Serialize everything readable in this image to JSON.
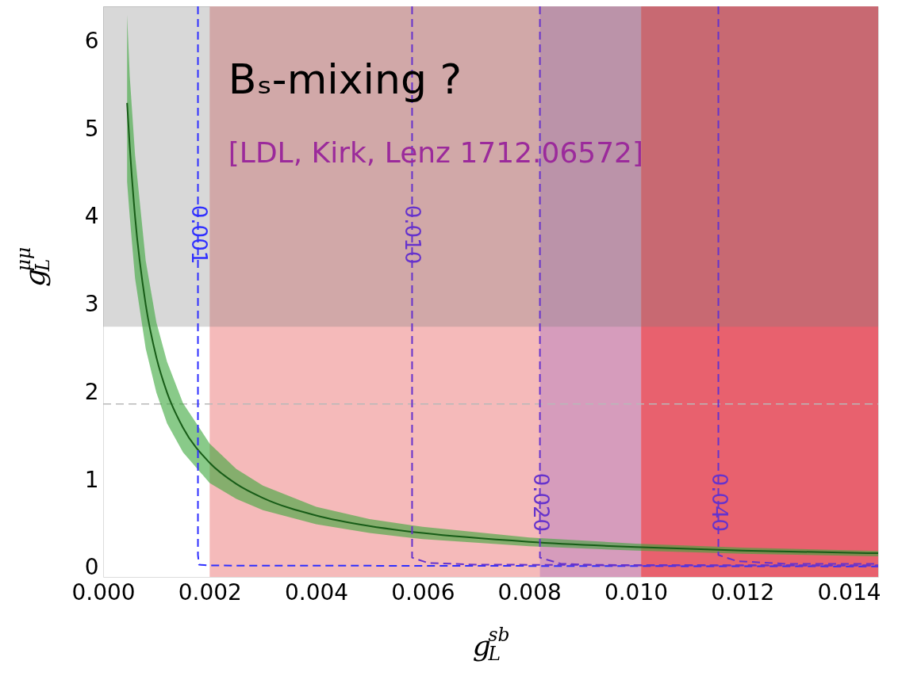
{
  "chart_data": {
    "type": "line",
    "xlabel": "g$_{L}$$^{sb}$",
    "ylabel": "g$_{L}$$^{μμ}$",
    "xlim": [
      0,
      0.01455
    ],
    "ylim": [
      -0.1,
      6.4
    ],
    "xticks": [
      {
        "value": 0,
        "label": "0.000"
      },
      0.002,
      0.004,
      0.006,
      0.008,
      {
        "value": 0.01,
        "label": "0.010"
      },
      0.012,
      0.014
    ],
    "yticks": [
      0,
      1,
      2,
      3,
      4,
      5,
      6
    ],
    "bands": [
      {
        "axis": "x",
        "from": 0.002,
        "to": 0.01455,
        "color": "#f5baba"
      },
      {
        "axis": "x",
        "from": 0.0082,
        "to": 0.0101,
        "color": "#d69cbc"
      },
      {
        "axis": "x",
        "from": 0.0101,
        "to": 0.01455,
        "color": "#e8616e"
      },
      {
        "axis": "y",
        "from": 2.75,
        "to": 6.4,
        "color": "#7f7f7f"
      }
    ],
    "ref_lines": [
      {
        "axis": "y",
        "value": 1.87,
        "color": "#b8b8b8",
        "line_style": "dashed"
      }
    ],
    "series": [
      {
        "color": "#175c17",
        "line_style": "solid",
        "x": [
          0.00045,
          0.0005,
          0.0006,
          0.0008,
          0.001,
          0.0012,
          0.0015,
          0.002,
          0.0025,
          0.003,
          0.004,
          0.005,
          0.006,
          0.008,
          0.01,
          0.012,
          0.01455
        ],
        "values": [
          5.3,
          4.8,
          4.0,
          3.0,
          2.4,
          2.0,
          1.6,
          1.2,
          0.96,
          0.8,
          0.6,
          0.48,
          0.4,
          0.3,
          0.24,
          0.2,
          0.17
        ],
        "lower": [
          4.4,
          4.0,
          3.3,
          2.5,
          2.0,
          1.65,
          1.32,
          0.97,
          0.79,
          0.66,
          0.5,
          0.4,
          0.33,
          0.25,
          0.2,
          0.165,
          0.135
        ],
        "upper": [
          6.3,
          5.6,
          4.7,
          3.5,
          2.8,
          2.35,
          1.88,
          1.42,
          1.13,
          0.94,
          0.7,
          0.56,
          0.47,
          0.35,
          0.28,
          0.235,
          0.195
        ]
      },
      {
        "color": "#2f2fff",
        "line_style": "dashed",
        "x": [
          0.00178,
          0.00178,
          0.0018,
          0.002,
          0.01455
        ],
        "values": [
          6.4,
          0.15,
          0.04,
          0.03,
          0.02
        ]
      },
      {
        "color": "#6633cc",
        "line_style": "dashed",
        "x": [
          0.0058,
          0.0058,
          0.0061,
          0.007,
          0.01455
        ],
        "values": [
          6.4,
          0.12,
          0.06,
          0.04,
          0.03
        ]
      },
      {
        "color": "#6633cc",
        "line_style": "dashed",
        "x": [
          0.0082,
          0.0082,
          0.0086,
          0.0095,
          0.01455
        ],
        "values": [
          6.4,
          0.12,
          0.05,
          0.03,
          0.03
        ]
      },
      {
        "color": "#6633cc",
        "line_style": "dashed",
        "x": [
          0.01155,
          0.01155,
          0.0119,
          0.0128,
          0.01455
        ],
        "values": [
          6.4,
          0.15,
          0.08,
          0.05,
          0.05
        ]
      }
    ],
    "annotations": [
      "Bₛ-mixing ?",
      "[LDL, Kirk, Lenz 1712.06572]",
      {
        "text": "0.001",
        "x": 0.00178,
        "y": 3.8
      },
      {
        "text": "0.010",
        "x": 0.0058,
        "y": 3.8
      },
      {
        "text": "0.020",
        "x": 0.0082,
        "y": 0.75
      },
      {
        "text": "0.040",
        "x": 0.01155,
        "y": 0.75
      }
    ]
  }
}
